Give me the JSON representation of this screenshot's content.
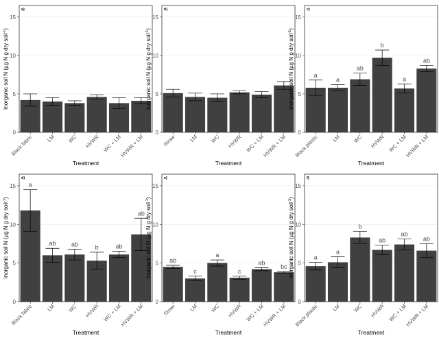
{
  "colors": {
    "bar": "#404040",
    "panel_border": "#333333",
    "grid": "#ebebeb",
    "text": "#4d4d4d"
  },
  "chart_data": [
    {
      "type": "bar",
      "panel": "a)",
      "categories": [
        "Black fabric",
        "LM",
        "WC",
        "HVWR",
        "WC + LM",
        "HVWR + LM"
      ],
      "values": [
        4.2,
        4.0,
        3.8,
        4.6,
        3.8,
        4.1
      ],
      "errors": [
        0.8,
        0.5,
        0.3,
        0.3,
        0.7,
        0.4
      ],
      "letters": [
        "",
        "",
        "",
        "",
        "",
        ""
      ],
      "xlabel": "Treatment",
      "ylabel": "Inorganic soil N (µg N g dry soil",
      "ylabel_sup": "-1",
      "ylabel_end": ")",
      "yticks": [
        0,
        5,
        10,
        15
      ],
      "ylim": [
        0,
        16.5
      ]
    },
    {
      "type": "bar",
      "panel": "b)",
      "categories": [
        "Straw",
        "LM",
        "WC",
        "HVWR",
        "WC + LM",
        "HVWR + LM"
      ],
      "values": [
        5.1,
        4.6,
        4.5,
        5.2,
        4.9,
        6.1
      ],
      "errors": [
        0.5,
        0.5,
        0.5,
        0.2,
        0.4,
        0.5
      ],
      "letters": [
        "",
        "",
        "",
        "",
        "",
        ""
      ],
      "xlabel": "Treatment",
      "ylabel": "Inorganic soil N (µg N g dry soil",
      "ylabel_sup": "-1",
      "ylabel_end": ")",
      "yticks": [
        0,
        5,
        10,
        15
      ],
      "ylim": [
        0,
        16.5
      ]
    },
    {
      "type": "bar",
      "panel": "c)",
      "categories": [
        "Black plastic",
        "LM",
        "WC",
        "HVWR",
        "WC + LM",
        "HVWR + LM"
      ],
      "values": [
        5.8,
        5.8,
        6.9,
        9.7,
        5.7,
        8.3
      ],
      "errors": [
        1.0,
        0.4,
        0.8,
        1.0,
        0.6,
        0.4
      ],
      "letters": [
        "a",
        "a",
        "ab",
        "b",
        "a",
        "ab"
      ],
      "xlabel": "Treatment",
      "ylabel": "Inorganic soil N (µg N g dry soil",
      "ylabel_sup": "-1",
      "ylabel_end": ")",
      "yticks": [
        0,
        5,
        10,
        15
      ],
      "ylim": [
        0,
        16.5
      ]
    },
    {
      "type": "bar",
      "panel": "d)",
      "categories": [
        "Black fabric",
        "LM",
        "WC",
        "HVWR",
        "WC + LM",
        "HVWR + LM"
      ],
      "values": [
        11.8,
        6.0,
        6.1,
        5.3,
        6.1,
        8.7
      ],
      "errors": [
        2.7,
        0.9,
        0.7,
        1.1,
        0.4,
        2.1
      ],
      "letters": [
        "a",
        "ab",
        "ab",
        "b",
        "ab",
        "ab"
      ],
      "xlabel": "Treatment",
      "ylabel": "Inorganic soil N (µg N g dry soil",
      "ylabel_sup": "-1",
      "ylabel_end": ")",
      "yticks": [
        0,
        5,
        10,
        15
      ],
      "ylim": [
        0,
        16.5
      ]
    },
    {
      "type": "bar",
      "panel": "e)",
      "categories": [
        "Straw",
        "LM",
        "WC",
        "HVWR",
        "WC + LM",
        "HVWR + LM"
      ],
      "values": [
        4.5,
        3.0,
        5.0,
        3.1,
        4.2,
        3.8
      ],
      "errors": [
        0.2,
        0.3,
        0.4,
        0.2,
        0.2,
        0.1
      ],
      "letters": [
        "ab",
        "c",
        "a",
        "c",
        "ab",
        "bc"
      ],
      "xlabel": "Treatment",
      "ylabel": "Inorganic soil N (µg N g dry soil",
      "ylabel_sup": "-1",
      "ylabel_end": ")",
      "yticks": [
        0,
        5,
        10,
        15
      ],
      "ylim": [
        0,
        16.5
      ]
    },
    {
      "type": "bar",
      "panel": "f)",
      "categories": [
        "Black plastic",
        "LM",
        "WC",
        "HVWR",
        "WC + LM",
        "HVWR + LM"
      ],
      "values": [
        4.6,
        5.1,
        8.3,
        6.7,
        7.4,
        6.6
      ],
      "errors": [
        0.5,
        0.7,
        0.8,
        0.6,
        0.7,
        0.9
      ],
      "letters": [
        "a",
        "a",
        "b",
        "ab",
        "ab",
        "ab"
      ],
      "xlabel": "Treatment",
      "ylabel": "Inorganic soil N (µg N g dry soil",
      "ylabel_sup": "-1",
      "ylabel_end": ")",
      "yticks": [
        0,
        5,
        10,
        15
      ],
      "ylim": [
        0,
        16.5
      ]
    }
  ]
}
